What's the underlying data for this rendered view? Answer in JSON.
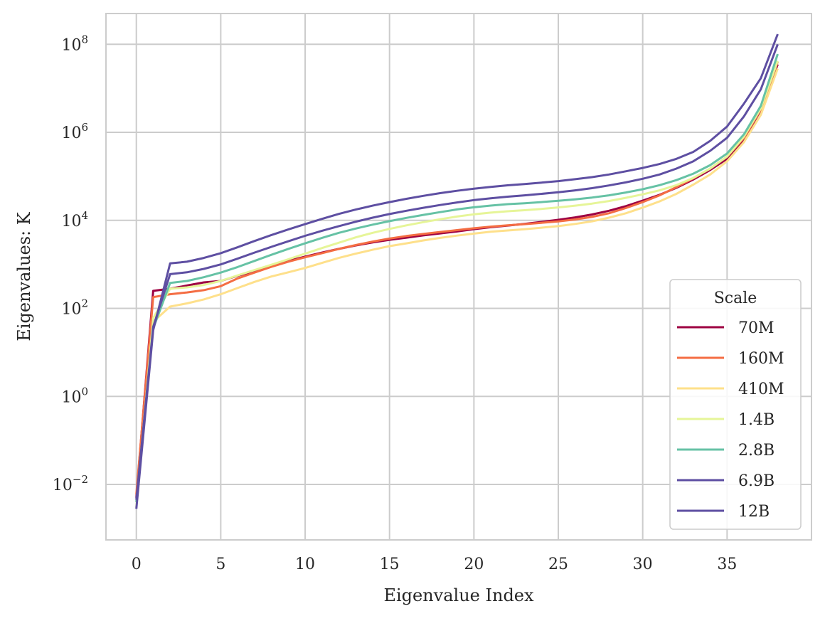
{
  "chart_data": {
    "type": "line",
    "xlabel": "Eigenvalue Index",
    "ylabel": "Eigenvalues: K",
    "yscale": "log",
    "xlim": [
      -1.8,
      40
    ],
    "ylim": [
      0.00055,
      500000000
    ],
    "x_ticks": [
      0,
      5,
      10,
      15,
      20,
      25,
      30,
      35
    ],
    "y_ticks": [
      {
        "value": 0.01,
        "base": "10",
        "exp": "−2"
      },
      {
        "value": 1,
        "base": "10",
        "exp": "0"
      },
      {
        "value": 100,
        "base": "10",
        "exp": "2"
      },
      {
        "value": 10000,
        "base": "10",
        "exp": "4"
      },
      {
        "value": 1000000,
        "base": "10",
        "exp": "6"
      },
      {
        "value": 100000000,
        "base": "10",
        "exp": "8"
      }
    ],
    "grid": true,
    "legend": {
      "title": "Scale",
      "placement": "lower-right"
    },
    "x": [
      0,
      1,
      2,
      3,
      4,
      5,
      6,
      7,
      8,
      9,
      10,
      11,
      12,
      13,
      14,
      15,
      16,
      17,
      18,
      19,
      20,
      21,
      22,
      23,
      24,
      25,
      26,
      27,
      28,
      29,
      30,
      31,
      32,
      33,
      34,
      35,
      36,
      37,
      38
    ],
    "series": [
      {
        "name": "70M",
        "color": "#9e0142",
        "values": [
          0.005,
          250,
          280,
          330,
          390,
          420,
          550,
          700,
          950,
          1200,
          1500,
          1850,
          2250,
          2700,
          3150,
          3600,
          4050,
          4550,
          5050,
          5600,
          6300,
          7000,
          7600,
          8300,
          9200,
          10300,
          11700,
          13600,
          16500,
          21000,
          28000,
          38000,
          55000,
          85000,
          140000,
          250000,
          700000,
          3200000,
          35000000
        ]
      },
      {
        "name": "160M",
        "color": "#f46d43",
        "values": [
          0.006,
          180,
          210,
          230,
          260,
          320,
          480,
          650,
          880,
          1150,
          1450,
          1800,
          2250,
          2750,
          3300,
          3850,
          4400,
          4900,
          5450,
          6000,
          6600,
          7200,
          7700,
          8200,
          8800,
          9500,
          10500,
          12000,
          14500,
          19000,
          26000,
          37000,
          57000,
          90000,
          150000,
          280000,
          750000,
          3300000,
          40000000
        ]
      },
      {
        "name": "410M",
        "color": "#fee08b",
        "values": [
          0.004,
          50,
          110,
          130,
          160,
          210,
          290,
          400,
          530,
          660,
          830,
          1080,
          1400,
          1750,
          2150,
          2600,
          3000,
          3500,
          4000,
          4500,
          5000,
          5500,
          5900,
          6300,
          6800,
          7400,
          8300,
          9500,
          11500,
          14500,
          19500,
          27000,
          40000,
          65000,
          110000,
          220000,
          600000,
          2500000,
          28000000
        ]
      },
      {
        "name": "1.4B",
        "color": "#e6f598",
        "values": [
          0.003,
          60,
          280,
          300,
          340,
          420,
          560,
          740,
          980,
          1300,
          1750,
          2350,
          3100,
          4100,
          5200,
          6400,
          7700,
          9100,
          10600,
          12200,
          13700,
          15000,
          16100,
          17000,
          18200,
          19700,
          21600,
          24000,
          27500,
          32500,
          39000,
          48000,
          63000,
          92000,
          150000,
          280000,
          800000,
          3500000,
          42000000
        ]
      },
      {
        "name": "2.8B",
        "color": "#66c2a5",
        "values": [
          0.004,
          35,
          380,
          420,
          510,
          650,
          870,
          1200,
          1650,
          2250,
          3000,
          4000,
          5200,
          6500,
          8000,
          9600,
          11400,
          13300,
          15400,
          17700,
          19800,
          21700,
          23300,
          24500,
          26000,
          27800,
          30000,
          33000,
          37000,
          43000,
          51000,
          63000,
          82000,
          115000,
          180000,
          330000,
          900000,
          4000000,
          60000000
        ]
      },
      {
        "name": "6.9B",
        "color": "#5e4fa2",
        "values": [
          0.0045,
          38,
          600,
          660,
          790,
          1000,
          1350,
          1850,
          2500,
          3350,
          4450,
          5800,
          7400,
          9300,
          11500,
          13900,
          16500,
          19300,
          22300,
          25500,
          28800,
          31800,
          34500,
          37000,
          40000,
          43500,
          48000,
          54000,
          62000,
          73000,
          88000,
          110000,
          150000,
          220000,
          380000,
          750000,
          2300000,
          9500000,
          100000000
        ]
      },
      {
        "name": "12B",
        "color": "#5e4fa2",
        "values": [
          0.0028,
          32,
          1050,
          1150,
          1400,
          1800,
          2450,
          3400,
          4650,
          6200,
          8200,
          10800,
          14000,
          17600,
          21600,
          26000,
          30800,
          36000,
          41500,
          47000,
          52500,
          57500,
          62500,
          67000,
          72000,
          78000,
          86000,
          96000,
          110000,
          130000,
          155000,
          190000,
          250000,
          360000,
          640000,
          1350000,
          4500000,
          17000000,
          170000000
        ]
      }
    ]
  }
}
